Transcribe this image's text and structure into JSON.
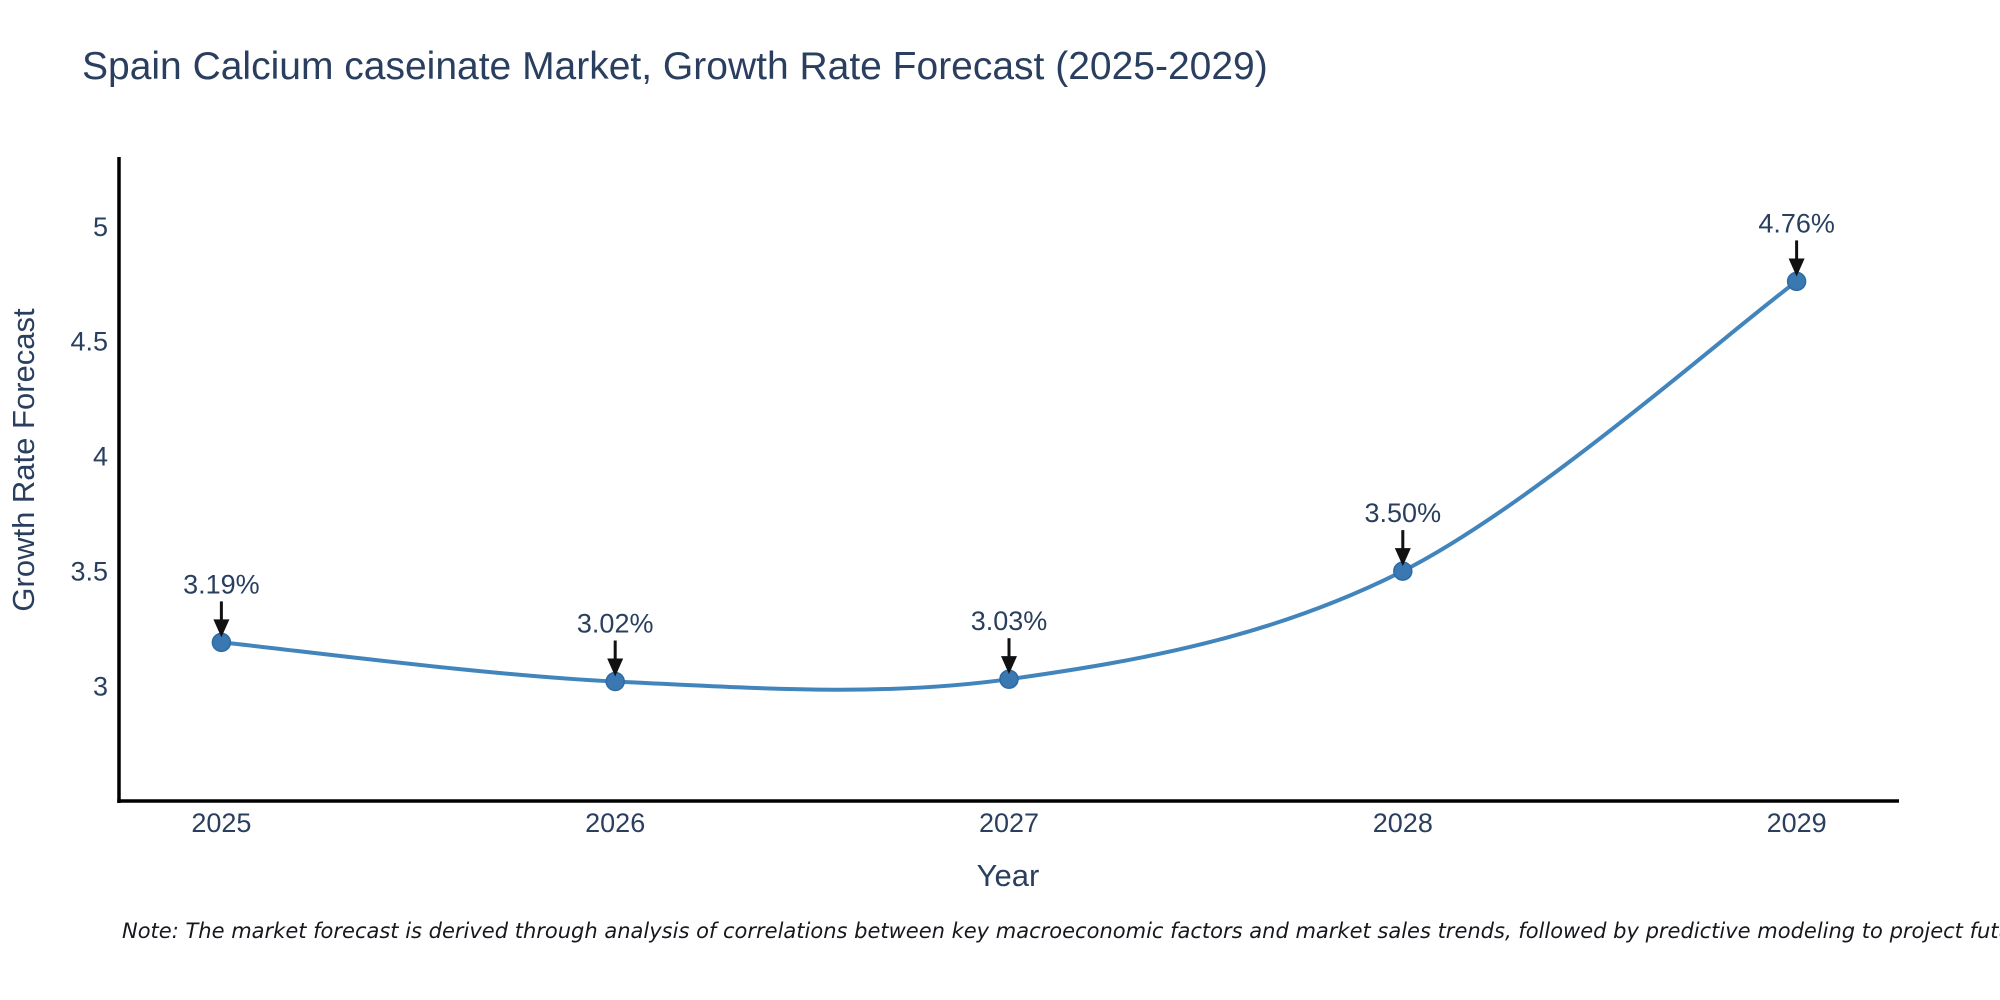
{
  "chart_data": {
    "type": "line",
    "title": "Spain Calcium caseinate Market, Growth Rate Forecast (2025-2029)",
    "xlabel": "Year",
    "ylabel": "Growth Rate Forecast",
    "categories": [
      2025,
      2026,
      2027,
      2028,
      2029
    ],
    "values": [
      3.19,
      3.02,
      3.03,
      3.5,
      4.76
    ],
    "point_labels": [
      "3.19%",
      "3.02%",
      "3.03%",
      "3.50%",
      "4.76%"
    ],
    "x_tick_labels": [
      "2025",
      "2026",
      "2027",
      "2028",
      "2029"
    ],
    "y_tick_values": [
      3,
      3.5,
      4,
      4.5,
      5
    ],
    "y_tick_labels": [
      "3",
      "3.5",
      "4",
      "4.5",
      "5"
    ],
    "x_range": [
      2024.74,
      2029.26
    ],
    "y_range": [
      2.5,
      5.31
    ],
    "grid": false,
    "legend": "none",
    "colors": {
      "line": "#4285bd",
      "marker": "#3a78b1",
      "marker_edge": "#2f6aa3",
      "arrow": "#111111",
      "text": "#2a3f5f",
      "spine": "#000000"
    },
    "note": "Note: The market forecast is derived through analysis of correlations between key macroeconomic factors and market sales trends, followed by predictive modeling to project future sales"
  }
}
